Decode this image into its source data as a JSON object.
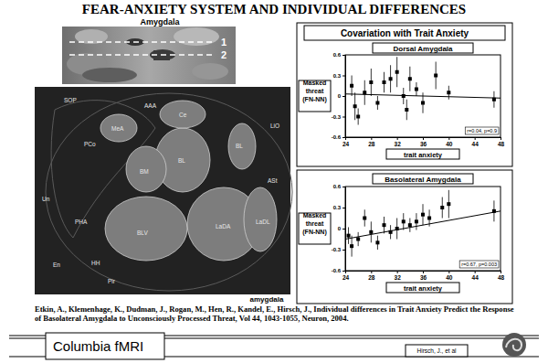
{
  "slide": {
    "title": "FEAR-ANXIETY SYSTEM AND INDIVIDUAL DIFFERENCES",
    "fmri_label": "Amygdala",
    "slice_labels": [
      "1",
      "2"
    ],
    "atlas_labels": [
      "SOP",
      "PCo",
      "MeA",
      "AAA",
      "Ce",
      "BM",
      "BL",
      "BLV",
      "LaDA",
      "LaDL",
      "Un",
      "PHA",
      "En",
      "BL",
      "ASt",
      "LiO",
      "HH",
      "Pir"
    ],
    "atlas_caption": "amygdala",
    "panel_heading": "Covariation with Trait Anxiety",
    "citation": "Etkin, A., Klemenhage, K., Dudman, J., Rogan, M., Hen, R., Kandel, E., Hirsch, J., Individual differences in Trait Anxiety Predict the Response of Basolateral Amygdala to Unconsciously Processed Threat, Vol 44, 1043-1055, Neuron, 2004.",
    "footer": "Columbia fMRI",
    "credit": "Hirsch, J., et al"
  },
  "chart_data": [
    {
      "type": "scatter",
      "title": "Dorsal Amygdala",
      "x_label": "trait anxiety",
      "y_label": "Masked threat (FN-NN)",
      "annotation": "r=0.04, p=0.9",
      "x": [
        25,
        25.5,
        26,
        27,
        28,
        29,
        30,
        31,
        32,
        33,
        33.5,
        34,
        35,
        36,
        38,
        40,
        47
      ],
      "values": [
        0.15,
        -0.15,
        -0.3,
        0.05,
        0.2,
        -0.1,
        0.2,
        0.25,
        0.35,
        0.0,
        -0.2,
        0.25,
        0.1,
        -0.1,
        0.3,
        0.05,
        -0.05
      ],
      "errors": [
        0.15,
        0.2,
        0.12,
        0.18,
        0.2,
        0.1,
        0.15,
        0.2,
        0.22,
        0.12,
        0.15,
        0.18,
        0.1,
        0.15,
        0.2,
        0.1,
        0.12
      ],
      "trend": {
        "x": [
          24,
          48
        ],
        "values": [
          0.03,
          -0.03
        ]
      },
      "color": "#000000",
      "marker": "square",
      "xlim": [
        24,
        48
      ],
      "ylim": [
        -0.6,
        0.6
      ],
      "xticks": [
        24,
        28,
        32,
        36,
        40,
        44,
        48
      ],
      "yticks": [
        -0.6,
        -0.3,
        0,
        0.3,
        0.6
      ],
      "grid": false
    },
    {
      "type": "scatter",
      "title": "Basolateral Amygdala",
      "x_label": "trait anxiety",
      "y_label": "Masked threat (FN-NN)",
      "annotation": "r=0.67, p=0.003",
      "x": [
        24.5,
        25,
        26,
        27,
        28,
        29,
        30,
        31,
        32,
        33,
        34,
        35,
        36,
        37,
        39,
        40,
        47
      ],
      "values": [
        -0.1,
        -0.25,
        -0.15,
        0.15,
        -0.05,
        -0.2,
        0.05,
        -0.05,
        0.0,
        0.1,
        0.05,
        0.1,
        0.2,
        0.15,
        0.3,
        0.35,
        0.25
      ],
      "errors": [
        0.12,
        0.15,
        0.1,
        0.12,
        0.15,
        0.1,
        0.12,
        0.1,
        0.15,
        0.12,
        0.1,
        0.12,
        0.15,
        0.12,
        0.15,
        0.2,
        0.15
      ],
      "trend": {
        "x": [
          24,
          48
        ],
        "values": [
          -0.15,
          0.25
        ]
      },
      "color": "#000000",
      "marker": "square",
      "xlim": [
        24,
        48
      ],
      "ylim": [
        -0.6,
        0.6
      ],
      "xticks": [
        24,
        28,
        32,
        36,
        40,
        44,
        48
      ],
      "yticks": [
        -0.6,
        -0.3,
        0,
        0.3,
        0.6
      ],
      "grid": false
    }
  ]
}
